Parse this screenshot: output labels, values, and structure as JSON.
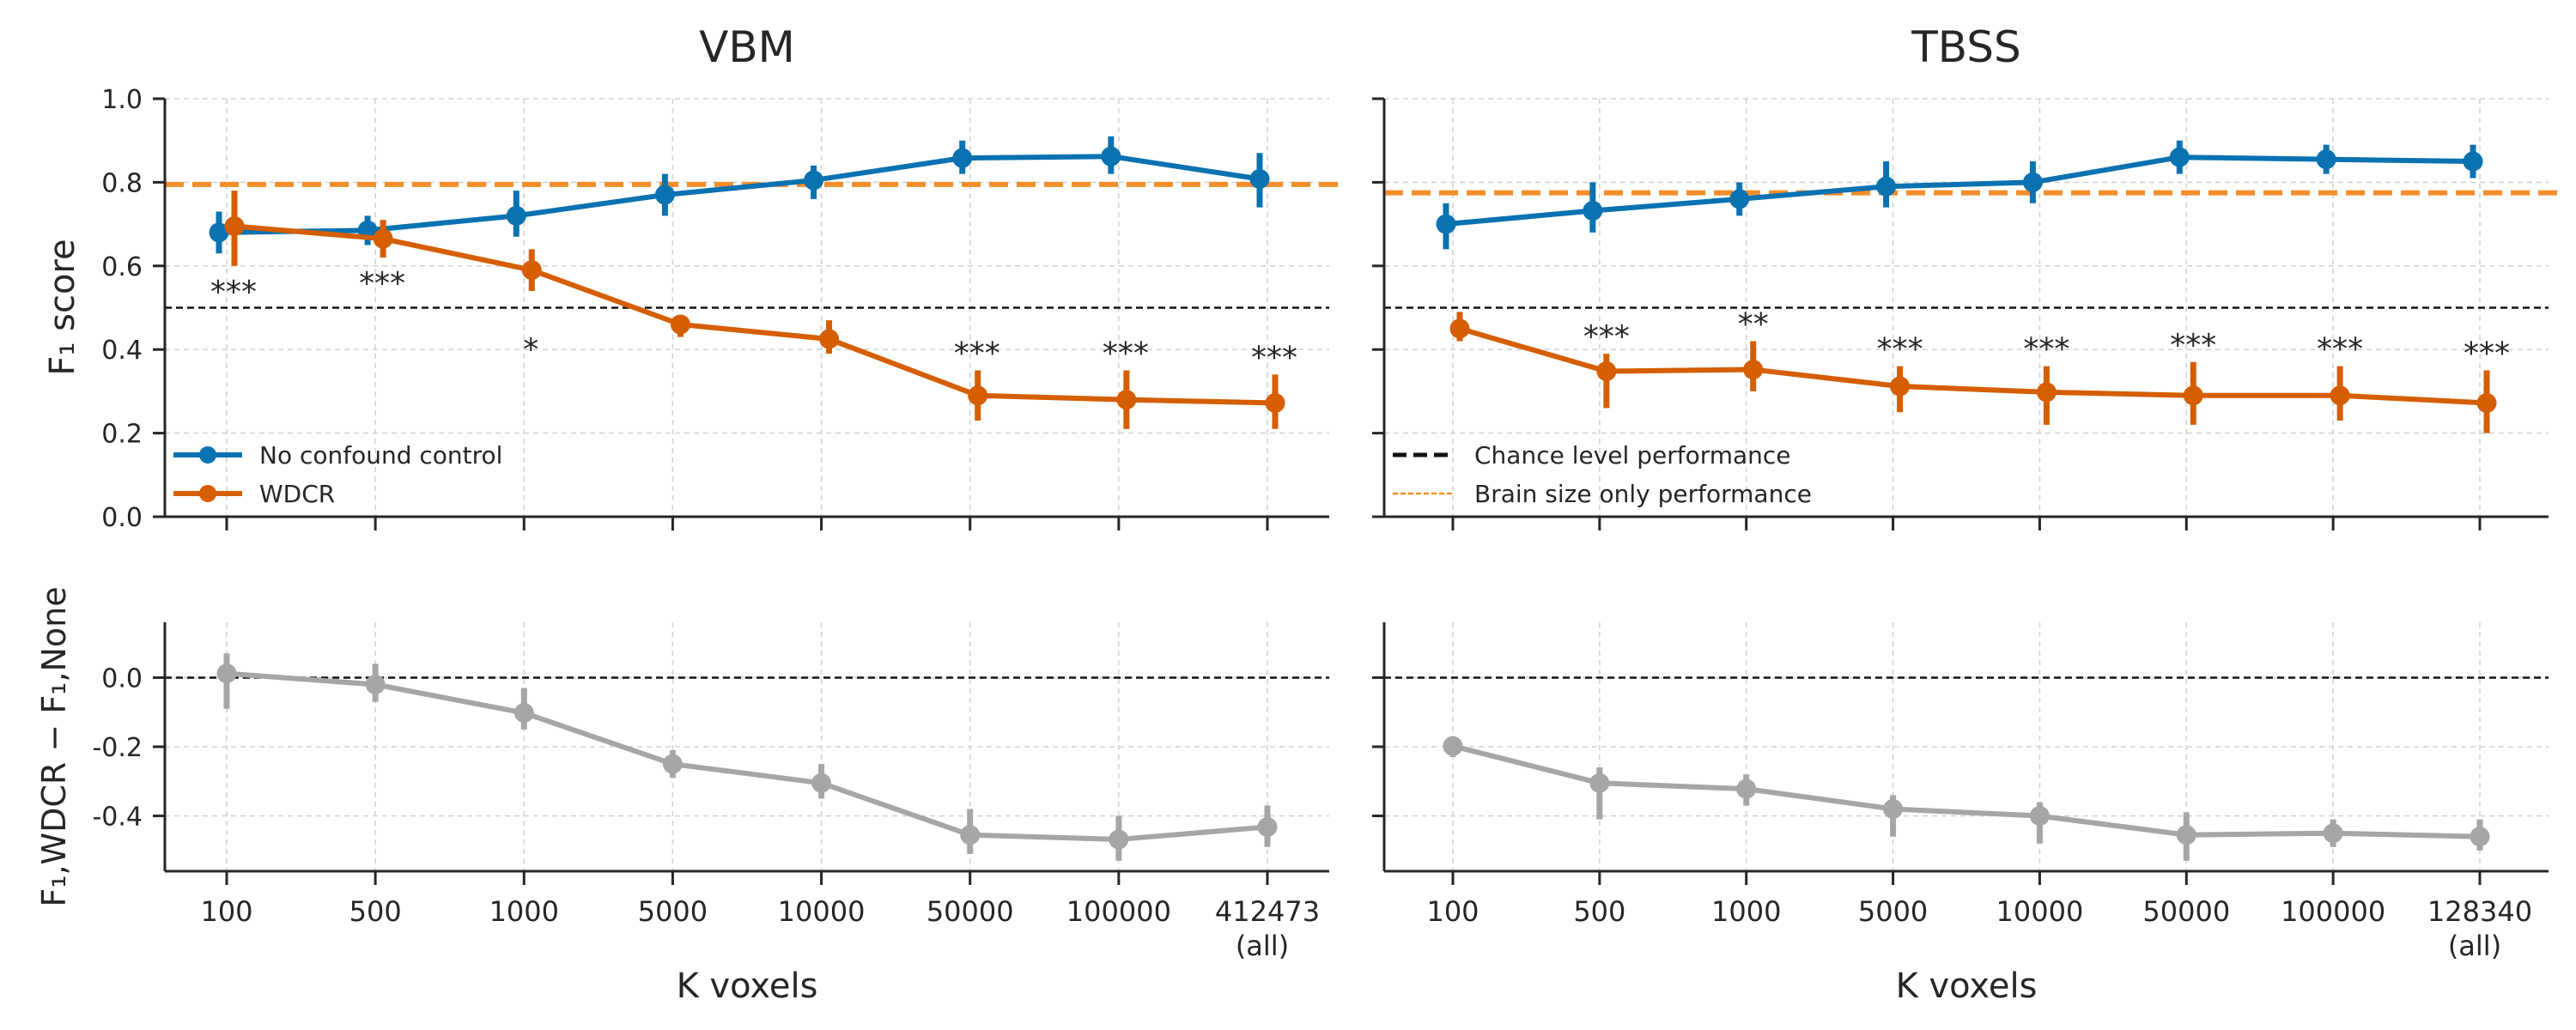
{
  "chart_data": [
    {
      "type": "line",
      "title": "VBM",
      "xlabel": "",
      "ylabel": "F₁ score",
      "ylim": [
        0,
        1
      ],
      "yticks": [
        "0.0",
        "0.2",
        "0.4",
        "0.6",
        "0.8",
        "1.0"
      ],
      "categories": [
        "100",
        "500",
        "1000",
        "5000",
        "10000",
        "50000",
        "100000",
        "412473\n(all)"
      ],
      "grid": true,
      "legend": {
        "placement": "lower-left",
        "entries": [
          "No confound control",
          "WDCR"
        ]
      },
      "reference_lines": {
        "chance": 0.5,
        "brain_size_only": 0.795
      },
      "series": [
        {
          "name": "No confound control",
          "color": "#0a72b1",
          "values": [
            0.68,
            0.685,
            0.72,
            0.77,
            0.805,
            0.858,
            0.862,
            0.808
          ],
          "lower": [
            0.63,
            0.65,
            0.67,
            0.72,
            0.76,
            0.82,
            0.82,
            0.74
          ],
          "upper": [
            0.73,
            0.72,
            0.78,
            0.82,
            0.84,
            0.9,
            0.91,
            0.87
          ]
        },
        {
          "name": "WDCR",
          "color": "#d55e00",
          "values": [
            0.695,
            0.665,
            0.59,
            0.46,
            0.425,
            0.29,
            0.28,
            0.272
          ],
          "lower": [
            0.6,
            0.62,
            0.54,
            0.43,
            0.39,
            0.23,
            0.21,
            0.21
          ],
          "upper": [
            0.78,
            0.71,
            0.64,
            0.48,
            0.47,
            0.35,
            0.35,
            0.34
          ]
        }
      ],
      "annotations": [
        "***",
        "***",
        "*",
        "",
        "",
        "***",
        "***",
        "***"
      ]
    },
    {
      "type": "line",
      "title": "TBSS",
      "xlabel": "",
      "ylabel": "",
      "ylim": [
        0,
        1
      ],
      "categories": [
        "100",
        "500",
        "1000",
        "5000",
        "10000",
        "50000",
        "100000",
        "128340\n(all)"
      ],
      "grid": true,
      "legend": {
        "placement": "lower-left",
        "entries": [
          "Chance level performance",
          "Brain size only performance"
        ]
      },
      "reference_lines": {
        "chance": 0.5,
        "brain_size_only": 0.775
      },
      "series": [
        {
          "name": "No confound control",
          "color": "#0a72b1",
          "values": [
            0.7,
            0.732,
            0.76,
            0.79,
            0.8,
            0.86,
            0.855,
            0.85
          ],
          "lower": [
            0.64,
            0.68,
            0.72,
            0.74,
            0.75,
            0.82,
            0.82,
            0.81
          ],
          "upper": [
            0.75,
            0.8,
            0.8,
            0.85,
            0.85,
            0.9,
            0.89,
            0.89
          ]
        },
        {
          "name": "WDCR",
          "color": "#d55e00",
          "values": [
            0.45,
            0.348,
            0.352,
            0.312,
            0.298,
            0.29,
            0.29,
            0.272
          ],
          "lower": [
            0.42,
            0.26,
            0.3,
            0.25,
            0.22,
            0.22,
            0.23,
            0.2
          ],
          "upper": [
            0.49,
            0.39,
            0.42,
            0.36,
            0.36,
            0.37,
            0.36,
            0.35
          ]
        }
      ],
      "annotations": [
        "",
        "***",
        "**",
        "***",
        "***",
        "***",
        "***",
        "***"
      ]
    },
    {
      "type": "line",
      "title": "",
      "xlabel": "K voxels",
      "ylabel": "F₁,WDCR − F₁,None",
      "ylim": [
        -0.56,
        0.16
      ],
      "yticks": [
        "0.0",
        "-0.2",
        "-0.4"
      ],
      "categories": [
        "100",
        "500",
        "1000",
        "5000",
        "10000",
        "50000",
        "100000",
        "412473\n(all)"
      ],
      "grid": true,
      "reference_lines": {
        "zero": 0
      },
      "series": [
        {
          "name": "",
          "color": "#a6a6a6",
          "values": [
            0.012,
            -0.02,
            -0.102,
            -0.25,
            -0.305,
            -0.455,
            -0.468,
            -0.432
          ],
          "lower": [
            -0.09,
            -0.07,
            -0.15,
            -0.29,
            -0.35,
            -0.51,
            -0.53,
            -0.49
          ],
          "upper": [
            0.07,
            0.04,
            -0.03,
            -0.21,
            -0.25,
            -0.38,
            -0.4,
            -0.37
          ]
        }
      ]
    },
    {
      "type": "line",
      "title": "",
      "xlabel": "K voxels",
      "ylabel": "",
      "ylim": [
        -0.56,
        0.16
      ],
      "categories": [
        "100",
        "500",
        "1000",
        "5000",
        "10000",
        "50000",
        "100000",
        "128340\n(all)"
      ],
      "grid": true,
      "reference_lines": {
        "zero": 0
      },
      "series": [
        {
          "name": "",
          "color": "#a6a6a6",
          "values": [
            -0.198,
            -0.305,
            -0.322,
            -0.38,
            -0.4,
            -0.455,
            -0.45,
            -0.46
          ],
          "lower": [
            -0.23,
            -0.41,
            -0.37,
            -0.46,
            -0.48,
            -0.53,
            -0.49,
            -0.5
          ],
          "upper": [
            -0.17,
            -0.26,
            -0.28,
            -0.34,
            -0.36,
            -0.39,
            -0.41,
            -0.41
          ]
        }
      ]
    }
  ]
}
